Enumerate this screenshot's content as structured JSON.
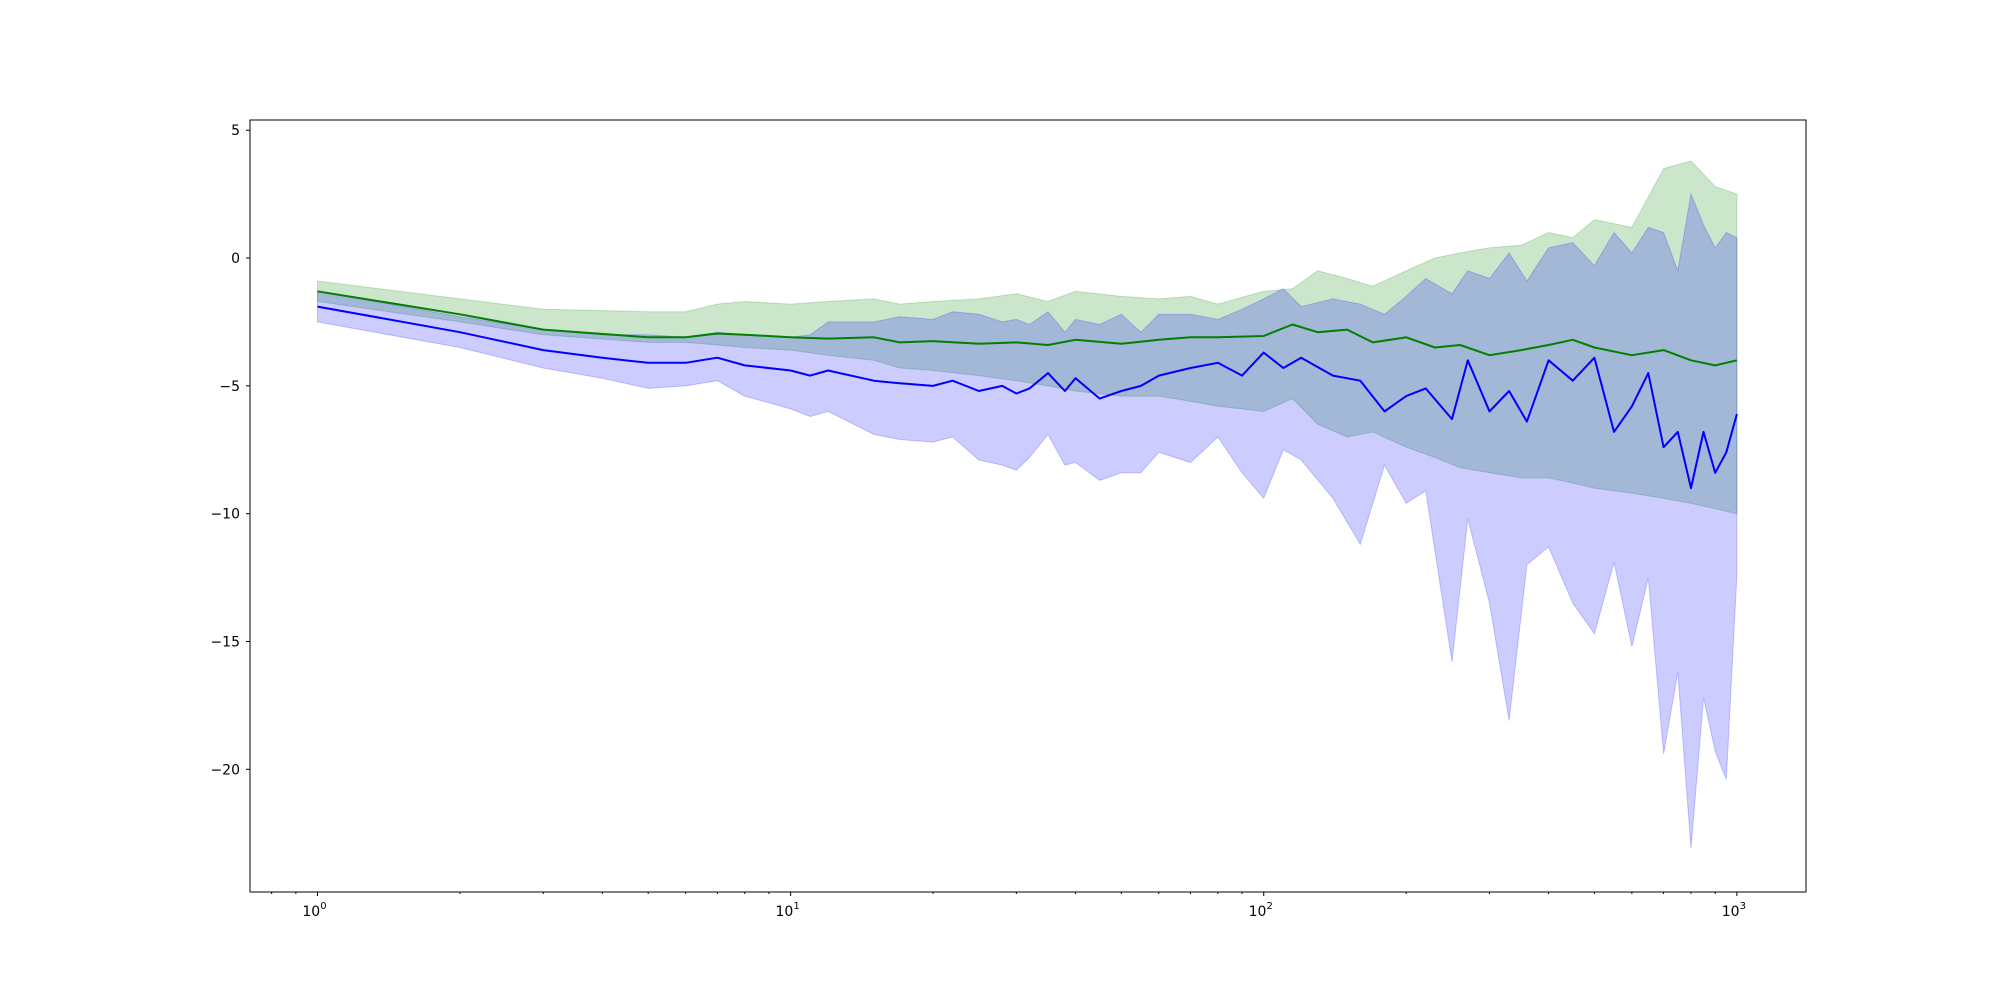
{
  "chart_data": {
    "type": "line",
    "title": "",
    "xlabel": "",
    "ylabel": "",
    "xscale": "log",
    "xlim": [
      0.72,
      1400
    ],
    "ylim": [
      -24.8,
      5.4
    ],
    "grid": false,
    "legend": "none",
    "x_ticks": [
      {
        "value": 1,
        "base": "10",
        "exp": "0"
      },
      {
        "value": 10,
        "base": "10",
        "exp": "1"
      },
      {
        "value": 100,
        "base": "10",
        "exp": "2"
      },
      {
        "value": 1000,
        "base": "10",
        "exp": "3"
      }
    ],
    "y_ticks": [
      {
        "value": 5,
        "label": "5"
      },
      {
        "value": 0,
        "label": "0"
      },
      {
        "value": -5,
        "label": "−5"
      },
      {
        "value": -10,
        "label": "−10"
      },
      {
        "value": -15,
        "label": "−15"
      },
      {
        "value": -20,
        "label": "−20"
      }
    ],
    "series": [
      {
        "color": "#008000",
        "band_color": "#008000",
        "band_opacity": 0.2,
        "x": [
          1,
          2,
          3,
          5,
          6,
          7,
          8,
          10,
          12,
          15,
          17,
          20,
          25,
          30,
          35,
          40,
          50,
          60,
          70,
          80,
          100,
          115,
          130,
          150,
          170,
          200,
          230,
          260,
          300,
          350,
          400,
          450,
          500,
          600,
          700,
          800,
          900,
          1000
        ],
        "mean": [
          -1.3,
          -2.2,
          -2.8,
          -3.1,
          -3.1,
          -2.95,
          -3.0,
          -3.1,
          -3.15,
          -3.1,
          -3.3,
          -3.25,
          -3.35,
          -3.3,
          -3.4,
          -3.2,
          -3.35,
          -3.2,
          -3.1,
          -3.1,
          -3.05,
          -2.6,
          -2.9,
          -2.8,
          -3.3,
          -3.1,
          -3.5,
          -3.4,
          -3.8,
          -3.6,
          -3.4,
          -3.2,
          -3.5,
          -3.8,
          -3.6,
          -4.0,
          -4.2,
          -4.0
        ],
        "upper": [
          -0.9,
          -1.6,
          -2.0,
          -2.1,
          -2.1,
          -1.8,
          -1.7,
          -1.8,
          -1.7,
          -1.6,
          -1.8,
          -1.7,
          -1.6,
          -1.4,
          -1.7,
          -1.3,
          -1.5,
          -1.6,
          -1.5,
          -1.8,
          -1.3,
          -1.2,
          -0.5,
          -0.8,
          -1.1,
          -0.5,
          0.0,
          0.2,
          0.4,
          0.5,
          1.0,
          0.8,
          1.5,
          1.2,
          3.5,
          3.8,
          2.8,
          2.5
        ],
        "lower": [
          -1.7,
          -2.5,
          -3.0,
          -3.3,
          -3.3,
          -3.4,
          -3.5,
          -3.6,
          -3.8,
          -4.0,
          -4.3,
          -4.4,
          -4.6,
          -4.8,
          -5.0,
          -5.2,
          -5.4,
          -5.4,
          -5.6,
          -5.8,
          -6.0,
          -5.5,
          -6.5,
          -7.0,
          -6.8,
          -7.4,
          -7.8,
          -8.2,
          -8.4,
          -8.6,
          -8.6,
          -8.8,
          -9.0,
          -9.2,
          -9.4,
          -9.6,
          -9.8,
          -10.0
        ]
      },
      {
        "color": "#0000ff",
        "band_color": "#0000ff",
        "band_opacity": 0.2,
        "x": [
          1,
          2,
          3,
          4,
          5,
          6,
          7,
          8,
          10,
          11,
          12,
          15,
          17,
          20,
          22,
          25,
          28,
          30,
          32,
          35,
          38,
          40,
          45,
          50,
          55,
          60,
          70,
          80,
          90,
          100,
          110,
          120,
          140,
          160,
          180,
          200,
          220,
          250,
          270,
          300,
          330,
          360,
          400,
          450,
          500,
          550,
          600,
          650,
          700,
          750,
          800,
          850,
          900,
          950,
          1000
        ],
        "mean": [
          -1.9,
          -2.9,
          -3.6,
          -3.9,
          -4.1,
          -4.1,
          -3.9,
          -4.2,
          -4.4,
          -4.6,
          -4.4,
          -4.8,
          -4.9,
          -5.0,
          -4.8,
          -5.2,
          -5.0,
          -5.3,
          -5.1,
          -4.5,
          -5.2,
          -4.7,
          -5.5,
          -5.2,
          -5.0,
          -4.6,
          -4.3,
          -4.1,
          -4.6,
          -3.7,
          -4.3,
          -3.9,
          -4.6,
          -4.8,
          -6.0,
          -5.4,
          -5.1,
          -6.3,
          -4.0,
          -6.0,
          -5.2,
          -6.4,
          -4.0,
          -4.8,
          -3.9,
          -6.8,
          -5.8,
          -4.5,
          -7.4,
          -6.8,
          -9.0,
          -6.8,
          -8.4,
          -7.6,
          -6.1
        ],
        "upper": [
          -1.3,
          -2.3,
          -2.8,
          -3.0,
          -3.0,
          -3.1,
          -2.9,
          -3.0,
          -3.1,
          -3.0,
          -2.5,
          -2.5,
          -2.3,
          -2.4,
          -2.1,
          -2.2,
          -2.5,
          -2.4,
          -2.6,
          -2.1,
          -2.9,
          -2.4,
          -2.6,
          -2.2,
          -2.9,
          -2.2,
          -2.2,
          -2.4,
          -2.0,
          -1.6,
          -1.2,
          -1.9,
          -1.6,
          -1.8,
          -2.2,
          -1.5,
          -0.8,
          -1.4,
          -0.5,
          -0.8,
          0.2,
          -0.9,
          0.4,
          0.6,
          -0.3,
          1.0,
          0.2,
          1.2,
          1.0,
          -0.5,
          2.5,
          1.3,
          0.4,
          1.0,
          0.8
        ],
        "lower": [
          -2.5,
          -3.5,
          -4.3,
          -4.7,
          -5.1,
          -5.0,
          -4.8,
          -5.4,
          -5.9,
          -6.2,
          -6.0,
          -6.9,
          -7.1,
          -7.2,
          -7.0,
          -7.9,
          -8.1,
          -8.3,
          -7.8,
          -6.9,
          -8.1,
          -8.0,
          -8.7,
          -8.4,
          -8.4,
          -7.6,
          -8.0,
          -7.0,
          -8.4,
          -9.4,
          -7.5,
          -7.9,
          -9.4,
          -11.2,
          -8.1,
          -9.6,
          -9.1,
          -15.8,
          -10.2,
          -13.5,
          -18.1,
          -12.0,
          -11.3,
          -13.5,
          -14.7,
          -11.9,
          -15.2,
          -12.5,
          -19.4,
          -16.2,
          -23.1,
          -17.2,
          -19.3,
          -20.4,
          -12.4
        ]
      }
    ]
  }
}
